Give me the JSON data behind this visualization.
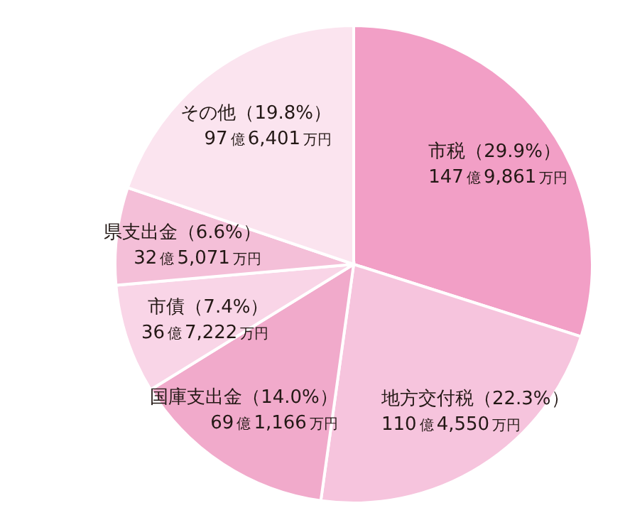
{
  "chart_data": {
    "type": "pie",
    "categories": [
      "市税",
      "地方交付税",
      "国庫支出金",
      "市債",
      "県支出金",
      "その他"
    ],
    "values": [
      29.9,
      22.3,
      14.0,
      7.4,
      6.6,
      19.8
    ],
    "value_labels": [
      "（29.9%）",
      "（22.3%）",
      "（14.0%）",
      "（7.4%）",
      "（6.6%）",
      "（19.8%）"
    ],
    "annotations": [
      "147億9,861万円",
      "110億4,550万円",
      "69億1,166万円",
      "36億7,222万円",
      "32億5,071万円",
      "97億6,401万円"
    ],
    "colors": [
      "#f29fc6",
      "#f6c4dd",
      "#f1aacb",
      "#f9d5e7",
      "#f4bfd8",
      "#fbe4ef"
    ]
  }
}
